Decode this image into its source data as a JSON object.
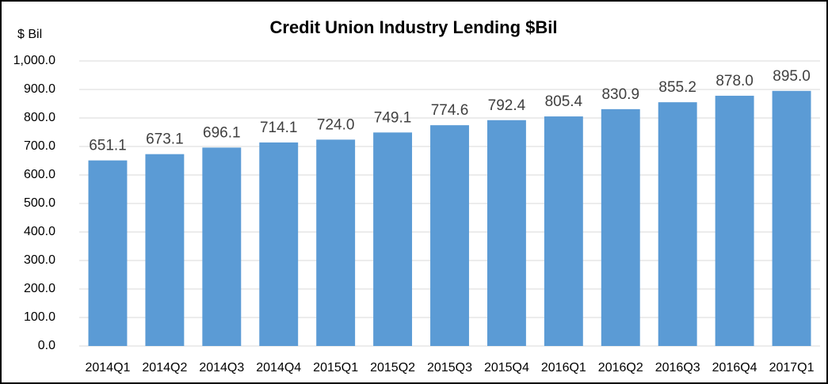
{
  "chart_data": {
    "type": "bar",
    "title": "Credit Union Industry Lending $Bil",
    "y_label": "$ Bil",
    "categories": [
      "2014Q1",
      "2014Q2",
      "2014Q3",
      "2014Q4",
      "2015Q1",
      "2015Q2",
      "2015Q3",
      "2015Q4",
      "2016Q1",
      "2016Q2",
      "2016Q3",
      "2016Q4",
      "2017Q1"
    ],
    "values": [
      651.1,
      673.1,
      696.1,
      714.1,
      724.0,
      749.1,
      774.6,
      792.4,
      805.4,
      830.9,
      855.2,
      878.0,
      895.0
    ],
    "value_labels": [
      "651.1",
      "673.1",
      "696.1",
      "714.1",
      "724.0",
      "749.1",
      "774.6",
      "792.4",
      "805.4",
      "830.9",
      "855.2",
      "878.0",
      "895.0"
    ],
    "color": "#5b9bd5",
    "ylim": [
      0,
      1000
    ],
    "yticks": [
      {
        "value": 0,
        "label": "0.0"
      },
      {
        "value": 100,
        "label": "100.0"
      },
      {
        "value": 200,
        "label": "200.0"
      },
      {
        "value": 300,
        "label": "300.0"
      },
      {
        "value": 400,
        "label": "400.0"
      },
      {
        "value": 500,
        "label": "500.0"
      },
      {
        "value": 600,
        "label": "600.0"
      },
      {
        "value": 700,
        "label": "700.0"
      },
      {
        "value": 800,
        "label": "800.0"
      },
      {
        "value": 900,
        "label": "900.0"
      },
      {
        "value": 1000,
        "label": "1,000.0"
      }
    ],
    "grid": true
  }
}
